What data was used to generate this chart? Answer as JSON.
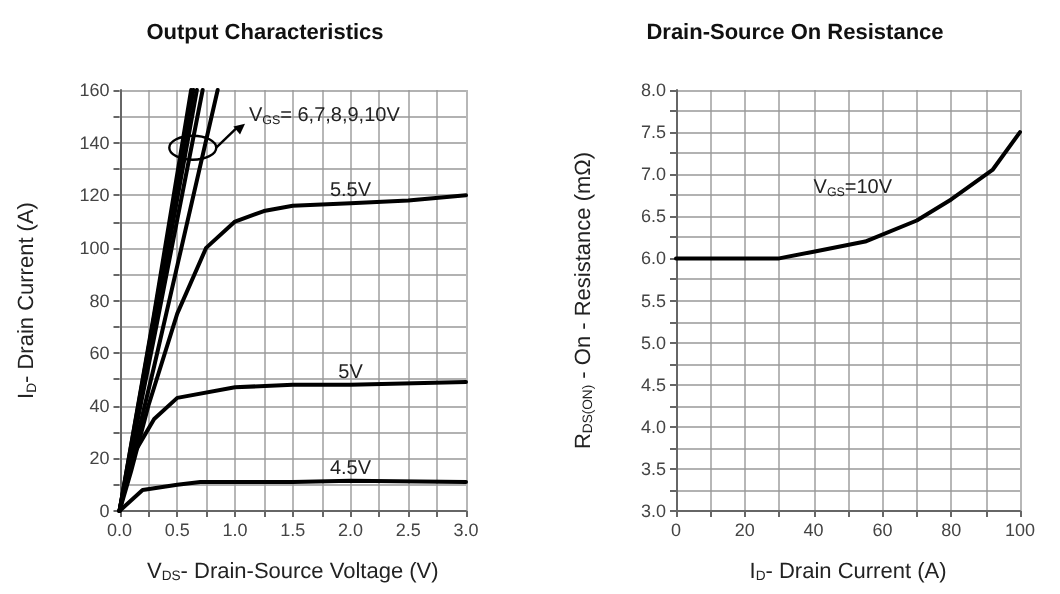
{
  "chart_data": [
    {
      "type": "line",
      "title": "Output Characteristics",
      "xlabel": "V$_{DS}$- Drain-Source Voltage (V)",
      "ylabel": "I$_{D}$- Drain Current (A)",
      "xlim": [
        0,
        3
      ],
      "ylim": [
        0,
        160
      ],
      "xticks": [
        {
          "value": 0,
          "label": "0.0"
        },
        {
          "value": 0.25,
          "label": null
        },
        {
          "value": 0.5,
          "label": "0.5"
        },
        {
          "value": 0.75,
          "label": null
        },
        {
          "value": 1,
          "label": "1.0"
        },
        {
          "value": 1.25,
          "label": null
        },
        {
          "value": 1.5,
          "label": "1.5"
        },
        {
          "value": 1.75,
          "label": null
        },
        {
          "value": 2,
          "label": "2.0"
        },
        {
          "value": 2.25,
          "label": null
        },
        {
          "value": 2.5,
          "label": "2.5"
        },
        {
          "value": 2.75,
          "label": null
        },
        {
          "value": 3,
          "label": "3.0"
        }
      ],
      "yticks": [
        0,
        {
          "value": 10,
          "label": null
        },
        20,
        {
          "value": 30,
          "label": null
        },
        40,
        {
          "value": 50,
          "label": null
        },
        60,
        {
          "value": 70,
          "label": null
        },
        80,
        {
          "value": 90,
          "label": null
        },
        100,
        {
          "value": 110,
          "label": null
        },
        120,
        {
          "value": 130,
          "label": null
        },
        140,
        {
          "value": 150,
          "label": null
        },
        160
      ],
      "grid": true,
      "legend": false,
      "marker": "none",
      "line_style": "solid",
      "annotations": [
        "V$_{GS}$= 6,7,8,9,10V"
      ],
      "series": [
        {
          "color": "#000000",
          "x": [
            0,
            0.3,
            0.62
          ],
          "values": [
            0,
            75,
            160
          ]
        },
        {
          "color": "#000000",
          "x": [
            0,
            0.3,
            0.64
          ],
          "values": [
            0,
            74,
            160
          ]
        },
        {
          "color": "#000000",
          "x": [
            0,
            0.3,
            0.67
          ],
          "values": [
            0,
            70,
            160
          ]
        },
        {
          "color": "#000000",
          "x": [
            0,
            0.3,
            0.72
          ],
          "values": [
            0,
            66,
            160
          ]
        },
        {
          "color": "#000000",
          "x": [
            0,
            0.3,
            0.85
          ],
          "values": [
            0,
            55,
            160
          ]
        },
        {
          "name": "5.5V",
          "color": "#000000",
          "x": [
            0,
            0.1,
            0.25,
            0.5,
            0.75,
            1.0,
            1.25,
            1.5,
            2.0,
            2.5,
            3.0
          ],
          "values": [
            0,
            15,
            40,
            75,
            100,
            110,
            114,
            116,
            117,
            118,
            120
          ]
        },
        {
          "name": "5V",
          "color": "#000000",
          "x": [
            0,
            0.1,
            0.3,
            0.5,
            1.0,
            1.5,
            2.0,
            3.0
          ],
          "values": [
            0,
            20,
            35,
            43,
            47,
            48,
            48,
            49
          ]
        },
        {
          "name": "4.5V",
          "color": "#000000",
          "x": [
            0,
            0.2,
            0.5,
            0.7,
            1.5,
            2.0,
            3.0
          ],
          "values": [
            0,
            8,
            10,
            11,
            11,
            11.5,
            11
          ]
        }
      ]
    },
    {
      "type": "line",
      "title": "Drain-Source On Resistance",
      "xlabel": "I$_{D}$- Drain Current (A)",
      "ylabel": "R$_{DS(ON)}$ - On - Resistance (mΩ)",
      "xlim": [
        0,
        100
      ],
      "ylim": [
        3,
        8
      ],
      "xticks": [
        0,
        {
          "value": 10,
          "label": null
        },
        20,
        {
          "value": 30,
          "label": null
        },
        40,
        {
          "value": 50,
          "label": null
        },
        60,
        {
          "value": 70,
          "label": null
        },
        80,
        {
          "value": 90,
          "label": null
        },
        100
      ],
      "yticks": [
        {
          "value": 3,
          "label": "3.0"
        },
        {
          "value": 3.25,
          "label": null
        },
        {
          "value": 3.5,
          "label": "3.5"
        },
        {
          "value": 3.75,
          "label": null
        },
        {
          "value": 4,
          "label": "4.0"
        },
        {
          "value": 4.25,
          "label": null
        },
        {
          "value": 4.5,
          "label": "4.5"
        },
        {
          "value": 4.75,
          "label": null
        },
        {
          "value": 5,
          "label": "5.0"
        },
        {
          "value": 5.25,
          "label": null
        },
        {
          "value": 5.5,
          "label": "5.5"
        },
        {
          "value": 5.75,
          "label": null
        },
        {
          "value": 6,
          "label": "6.0"
        },
        {
          "value": 6.25,
          "label": null
        },
        {
          "value": 6.5,
          "label": "6.5"
        },
        {
          "value": 6.75,
          "label": null
        },
        {
          "value": 7,
          "label": "7.0"
        },
        {
          "value": 7.25,
          "label": null
        },
        {
          "value": 7.5,
          "label": "7.5"
        },
        {
          "value": 7.75,
          "label": null
        },
        {
          "value": 8,
          "label": "8.0"
        }
      ],
      "grid": true,
      "legend": false,
      "marker": "none",
      "line_style": "solid",
      "annotations": [
        "V$_{GS}$=10V"
      ],
      "series": [
        {
          "color": "#000000",
          "x": [
            0,
            30,
            40,
            55,
            70,
            80,
            92,
            100
          ],
          "values": [
            6,
            6,
            6.08,
            6.2,
            6.45,
            6.7,
            7.05,
            7.5
          ]
        }
      ]
    }
  ]
}
